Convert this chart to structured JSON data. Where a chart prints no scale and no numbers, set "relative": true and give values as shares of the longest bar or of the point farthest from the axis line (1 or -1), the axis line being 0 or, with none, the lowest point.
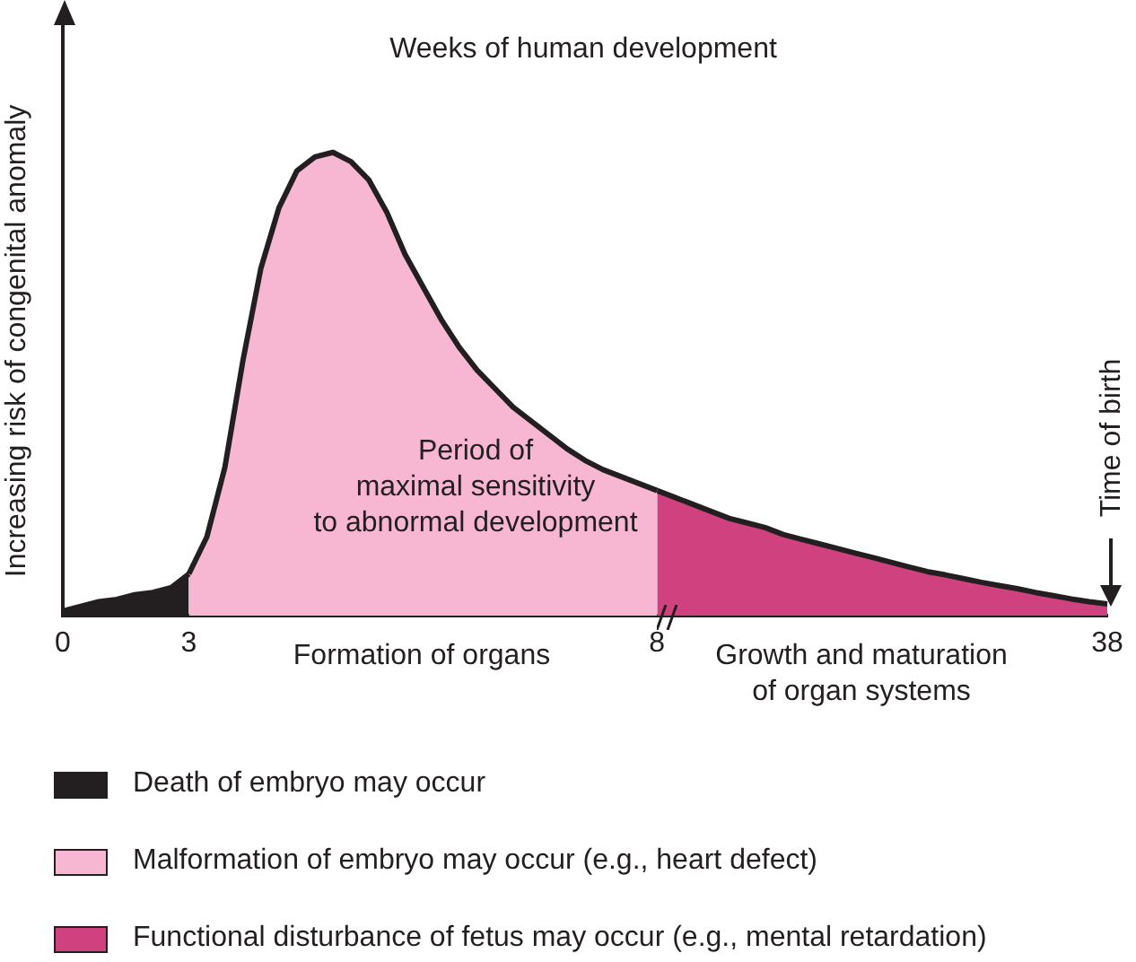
{
  "chart_data": {
    "type": "area",
    "title": "Weeks of human development",
    "ylabel": "Increasing risk of congenital anomaly",
    "relative": true,
    "legend": "bottom",
    "grid": false,
    "categories": [
      "0",
      null,
      null,
      null,
      null,
      null,
      null,
      "3",
      null,
      null,
      null,
      null,
      null,
      null,
      null,
      null,
      null,
      null,
      null,
      null,
      null,
      null,
      null,
      null,
      null,
      null,
      null,
      null,
      null,
      null,
      null,
      null,
      null,
      "8",
      null,
      null,
      null,
      null,
      null,
      null,
      null,
      null,
      null,
      null,
      null,
      null,
      null,
      null,
      null,
      null,
      null,
      null,
      null,
      null,
      null,
      null,
      null,
      null,
      "38"
    ],
    "series": [
      {
        "name": "Death of embryo may occur",
        "color": "#231f20",
        "values": [
          0.01,
          0.02,
          0.03,
          0.035,
          0.045,
          0.05,
          0.06,
          0.09,
          null,
          null,
          null,
          null,
          null,
          null,
          null,
          null,
          null,
          null,
          null,
          null,
          null,
          null,
          null,
          null,
          null,
          null,
          null,
          null,
          null,
          null,
          null,
          null,
          null,
          null,
          null,
          null,
          null,
          null,
          null,
          null,
          null,
          null,
          null,
          null,
          null,
          null,
          null,
          null,
          null,
          null,
          null,
          null,
          null,
          null,
          null,
          null,
          null,
          null,
          null
        ]
      },
      {
        "name": "Malformation of embryo may occur (e.g., heart defect)",
        "color": "#f7b7d3",
        "values": [
          null,
          null,
          null,
          null,
          null,
          null,
          null,
          0.09,
          0.17,
          0.32,
          0.55,
          0.75,
          0.88,
          0.96,
          0.99,
          1,
          0.98,
          0.94,
          0.87,
          0.78,
          0.71,
          0.64,
          0.58,
          0.53,
          0.49,
          0.45,
          0.42,
          0.39,
          0.36,
          0.335,
          0.315,
          0.3,
          0.285,
          0.27,
          null,
          null,
          null,
          null,
          null,
          null,
          null,
          null,
          null,
          null,
          null,
          null,
          null,
          null,
          null,
          null,
          null,
          null,
          null,
          null,
          null,
          null,
          null,
          null,
          null
        ]
      },
      {
        "name": "Functional disturbance of fetus may occur (e.g., mental retardation)",
        "color": "#d0427f",
        "values": [
          null,
          null,
          null,
          null,
          null,
          null,
          null,
          null,
          null,
          null,
          null,
          null,
          null,
          null,
          null,
          null,
          null,
          null,
          null,
          null,
          null,
          null,
          null,
          null,
          null,
          null,
          null,
          null,
          null,
          null,
          null,
          null,
          null,
          0.27,
          0.255,
          0.24,
          0.225,
          0.21,
          0.2,
          0.19,
          0.175,
          0.165,
          0.155,
          0.145,
          0.135,
          0.125,
          0.115,
          0.105,
          0.095,
          0.088,
          0.08,
          0.072,
          0.065,
          0.058,
          0.05,
          0.043,
          0.036,
          0.03,
          0.025
        ]
      }
    ],
    "annotations": [
      "Period of\nmaximal sensitivity\nto abnormal development",
      "Formation of organs",
      "Growth and maturation\nof organ systems",
      "Time of birth"
    ]
  }
}
